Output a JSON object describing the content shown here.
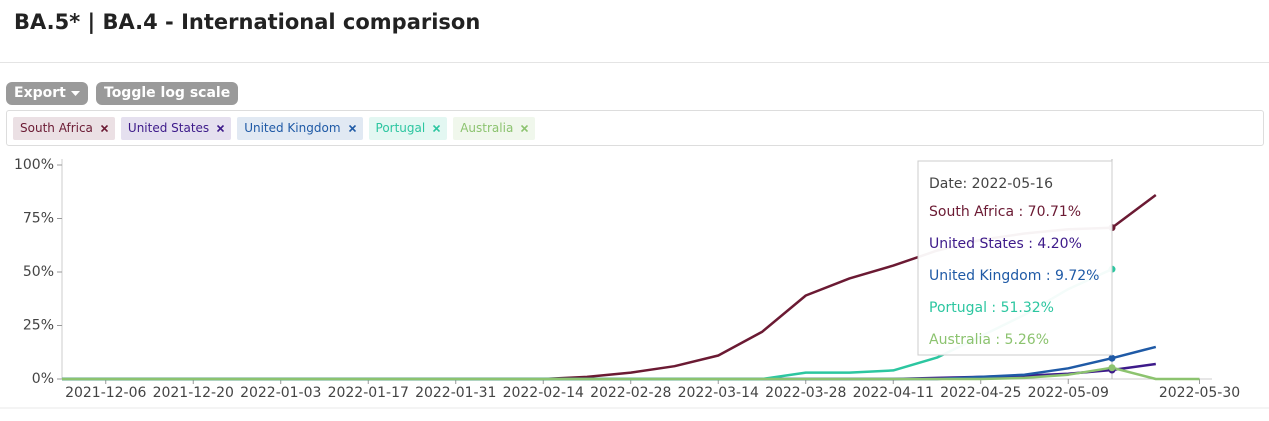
{
  "header": {
    "title": "BA.5* | BA.4 - International comparison"
  },
  "buttons": [
    "Export",
    "Toggle log scale"
  ],
  "chart_data": {
    "type": "line",
    "x": [
      "2021-11-29",
      "2021-12-06",
      "2021-12-13",
      "2021-12-20",
      "2021-12-27",
      "2022-01-03",
      "2022-01-10",
      "2022-01-17",
      "2022-01-24",
      "2022-01-31",
      "2022-02-07",
      "2022-02-14",
      "2022-02-21",
      "2022-02-28",
      "2022-03-07",
      "2022-03-14",
      "2022-03-21",
      "2022-03-28",
      "2022-04-04",
      "2022-04-11",
      "2022-04-18",
      "2022-04-25",
      "2022-05-02",
      "2022-05-09",
      "2022-05-16",
      "2022-05-23",
      "2022-05-30"
    ],
    "series": [
      {
        "name": "South Africa",
        "color": "#6b1a33",
        "values": [
          0,
          0,
          0,
          0,
          0,
          0,
          0,
          0,
          0,
          0,
          0,
          0,
          1,
          3,
          6,
          11,
          22,
          39,
          47,
          53,
          60,
          65,
          68,
          70,
          70.71,
          86,
          null
        ]
      },
      {
        "name": "United States",
        "color": "#3d1a8a",
        "values": [
          0,
          0,
          0,
          0,
          0,
          0,
          0,
          0,
          0,
          0,
          0,
          0,
          0,
          0,
          0,
          0,
          0,
          0,
          0,
          0,
          0.5,
          1,
          1.5,
          2.5,
          4.2,
          7,
          null
        ]
      },
      {
        "name": "United Kingdom",
        "color": "#1f5aa6",
        "values": [
          0,
          0,
          0,
          0,
          0,
          0,
          0,
          0,
          0,
          0,
          0,
          0,
          0,
          0,
          0,
          0,
          0,
          0,
          0,
          0,
          0,
          1,
          2,
          5,
          9.72,
          15,
          null
        ]
      },
      {
        "name": "Portugal",
        "color": "#2cc6a0",
        "values": [
          0,
          0,
          0,
          0,
          0,
          0,
          0,
          0,
          0,
          0,
          0,
          0,
          0,
          0,
          0,
          0,
          0,
          3,
          3,
          4,
          10,
          20,
          30,
          42,
          51.32,
          null,
          null
        ]
      },
      {
        "name": "Australia",
        "color": "#8cc36f",
        "values": [
          0,
          0,
          0,
          0,
          0,
          0,
          0,
          0,
          0,
          0,
          0,
          0,
          0,
          0,
          0,
          0,
          0,
          0,
          0,
          0,
          0,
          0,
          0.5,
          2,
          5.26,
          0,
          0
        ]
      }
    ],
    "xlim": [
      "2021-11-29",
      "2022-06-01"
    ],
    "xticks": [
      "2021-12-06",
      "2021-12-20",
      "2022-01-03",
      "2022-01-17",
      "2022-01-31",
      "2022-02-14",
      "2022-02-28",
      "2022-03-14",
      "2022-03-28",
      "2022-04-11",
      "2022-04-25",
      "2022-05-09",
      "2022-05-30"
    ],
    "ylim": [
      0,
      100
    ],
    "yticks": [
      {
        "value": 0,
        "label": "0%"
      },
      {
        "value": 25,
        "label": "25%"
      },
      {
        "value": 50,
        "label": "50%"
      },
      {
        "value": 75,
        "label": "75%"
      },
      {
        "value": 100,
        "label": "100%"
      }
    ],
    "tooltip": {
      "index": 24,
      "date_label": "Date: 2022-05-16",
      "entries": [
        "South Africa : 70.71%",
        "United States : 4.20%",
        "United Kingdom : 9.72%",
        "Portugal : 51.32%",
        "Australia : 5.26%"
      ]
    }
  }
}
